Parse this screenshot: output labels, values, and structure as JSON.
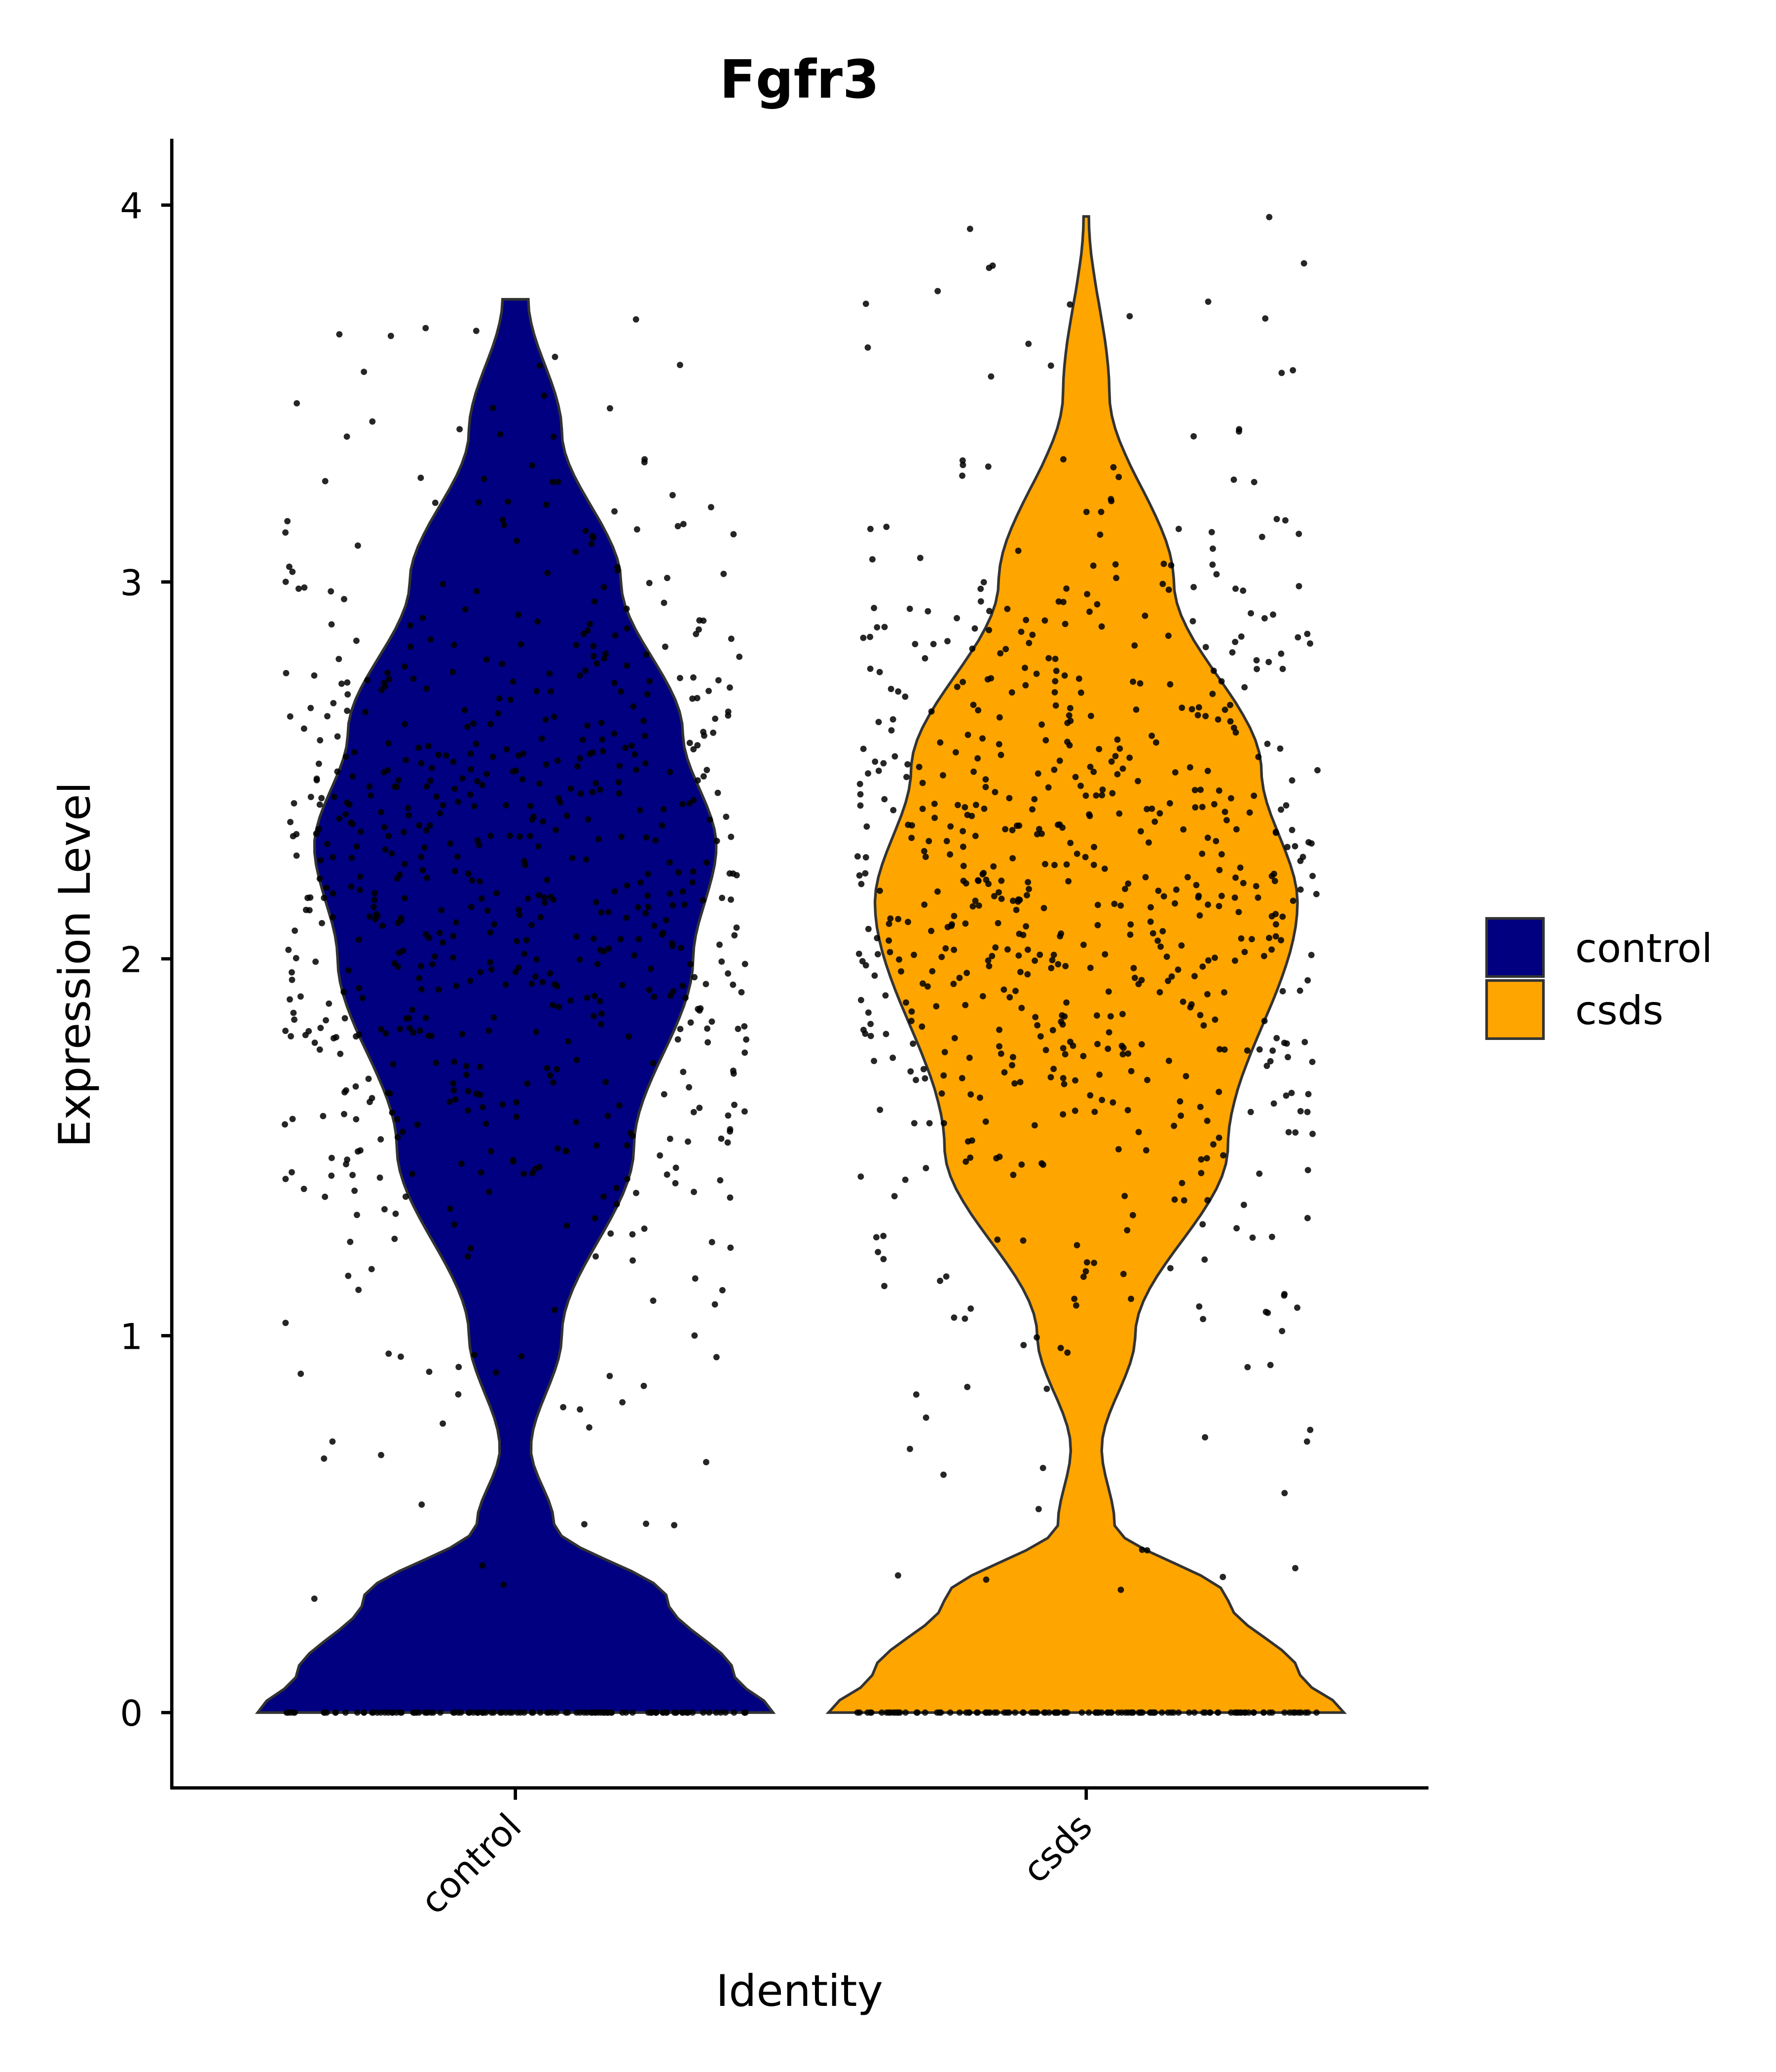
{
  "chart_data": {
    "type": "violin",
    "title": "Fgfr3",
    "xlabel": "Identity",
    "ylabel": "Expression Level",
    "ylim": [
      -0.2,
      4.18
    ],
    "yticks": [
      "0",
      "1",
      "2",
      "3",
      "4"
    ],
    "categories": [
      "control",
      "csds"
    ],
    "legend": {
      "position": "right",
      "entries": [
        "control",
        "csds"
      ]
    },
    "grid": false,
    "series": [
      {
        "name": "control",
        "color": "#000080",
        "max_value": 3.75,
        "density_profile": {
          "y": [
            0,
            0.1,
            0.3,
            0.5,
            0.7,
            1.0,
            1.5,
            2.0,
            2.3,
            2.6,
            3.0,
            3.4,
            3.75
          ],
          "relative_width": [
            1.0,
            0.85,
            0.59,
            0.15,
            0.06,
            0.18,
            0.46,
            0.69,
            0.78,
            0.65,
            0.41,
            0.18,
            0.05
          ]
        }
      },
      {
        "name": "csds",
        "color": "#FFA500",
        "max_value": 3.97,
        "density_profile": {
          "y": [
            0,
            0.1,
            0.3,
            0.5,
            0.7,
            1.0,
            1.5,
            2.15,
            2.5,
            3.0,
            3.5,
            3.97
          ],
          "relative_width": [
            1.0,
            0.83,
            0.55,
            0.11,
            0.06,
            0.19,
            0.55,
            0.82,
            0.68,
            0.34,
            0.09,
            0.01
          ]
        }
      }
    ]
  }
}
